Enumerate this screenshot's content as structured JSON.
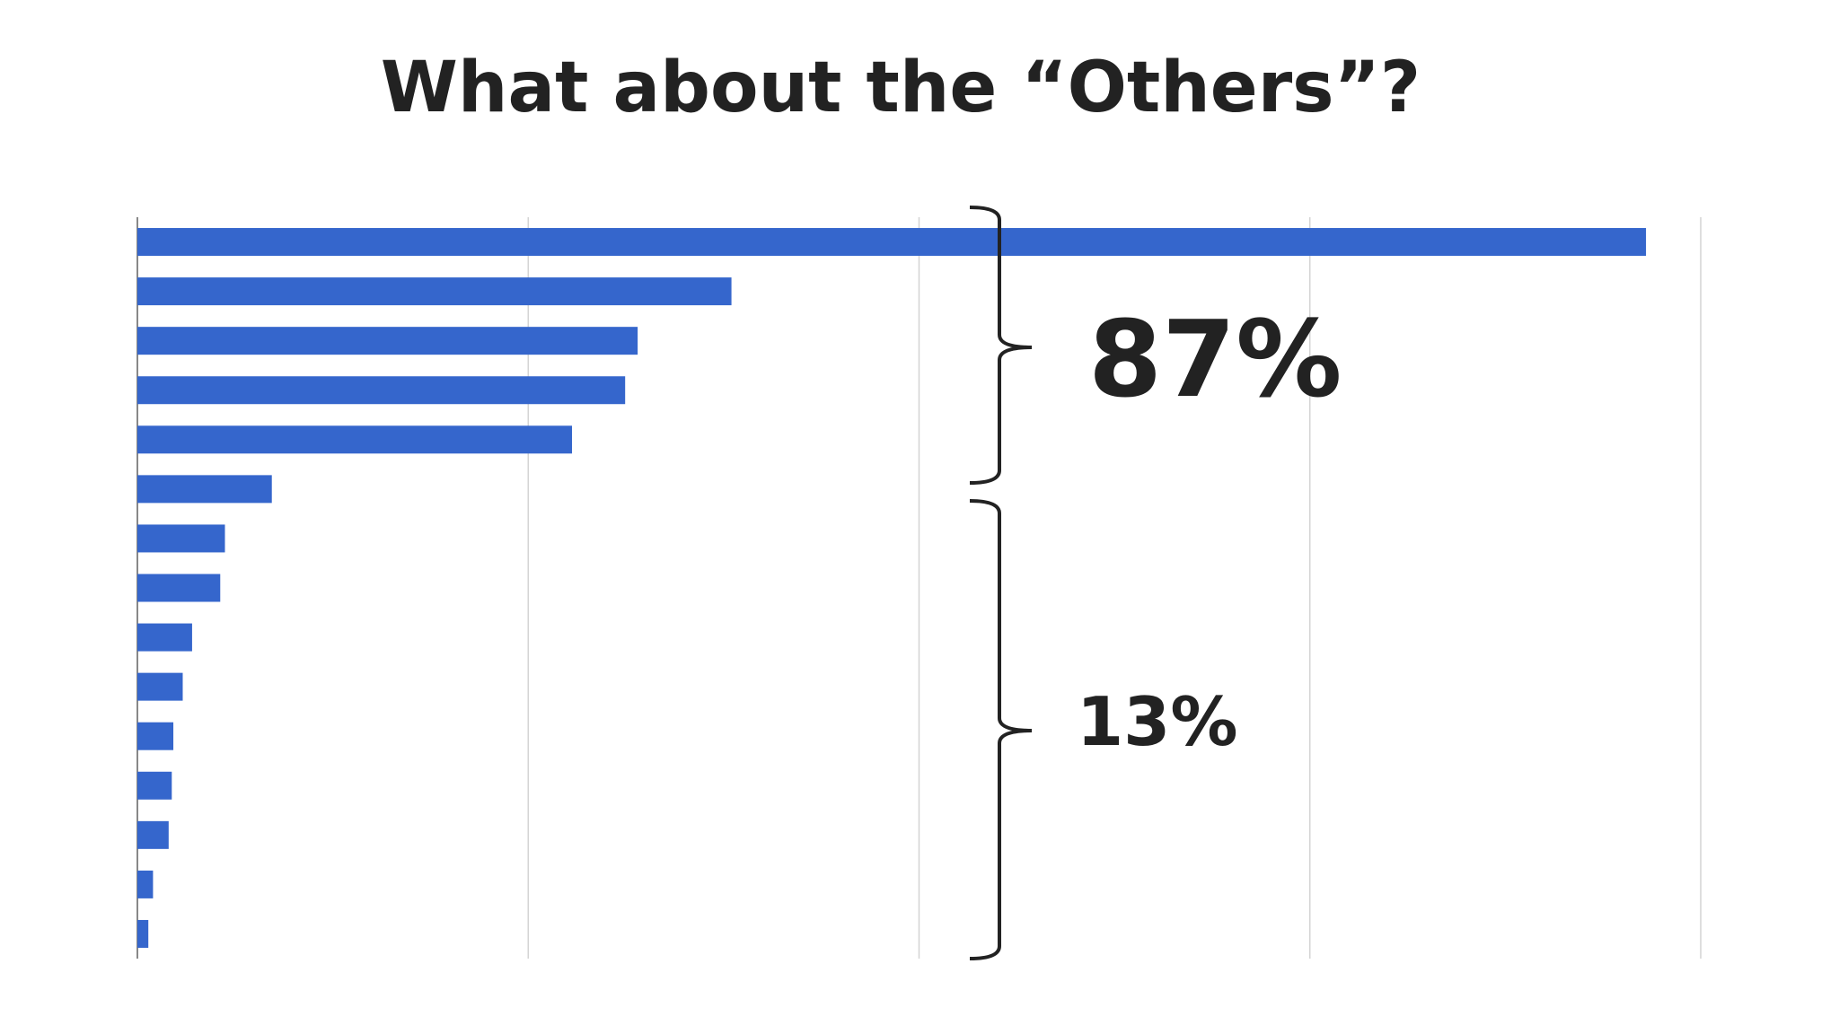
{
  "chart_data": {
    "type": "bar",
    "orientation": "horizontal",
    "title": "What about the “Others”?",
    "categories": [
      null,
      null,
      null,
      null,
      null,
      null,
      null,
      null,
      null,
      null,
      null,
      null,
      null,
      null,
      null
    ],
    "values": [
      96.5,
      38.0,
      32.0,
      31.2,
      27.8,
      8.6,
      5.6,
      5.3,
      3.5,
      2.9,
      2.3,
      2.2,
      2.0,
      1.0,
      0.7
    ],
    "color": "#3566cc",
    "xlim": [
      0,
      100
    ],
    "xticks": [
      0,
      25,
      50,
      75,
      100
    ],
    "grid": true,
    "annotations": [
      "87%",
      "13%"
    ]
  }
}
